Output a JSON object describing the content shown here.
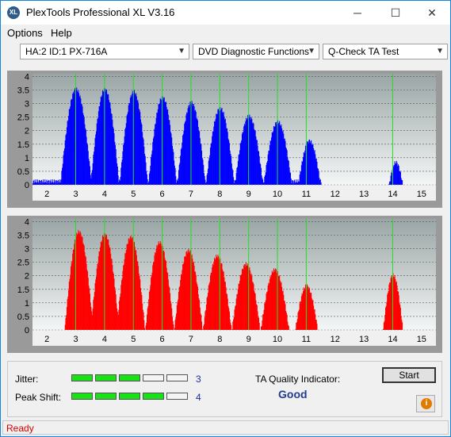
{
  "window": {
    "title": "PlexTools Professional XL V3.16",
    "icon_text": "XL"
  },
  "title_buttons": {
    "minimize": "─",
    "maximize": "☐",
    "close": "✕"
  },
  "menu": [
    "Options",
    "Help"
  ],
  "combos": {
    "drive": "HA:2 ID:1  PX-716A",
    "function": "DVD Diagnostic Functions",
    "test": "Q-Check TA Test"
  },
  "chart_data": [
    {
      "type": "bar",
      "name": "upper",
      "color": "#0000ff",
      "x_ticks": [
        "2",
        "3",
        "4",
        "5",
        "6",
        "7",
        "8",
        "9",
        "10",
        "11",
        "12",
        "13",
        "14",
        "15"
      ],
      "y_ticks": [
        "4",
        "3.5",
        "3",
        "2.5",
        "2",
        "1.5",
        "1",
        "0.5",
        "0"
      ],
      "xlim": [
        1.5,
        15.5
      ],
      "ylim": [
        0,
        4.1
      ],
      "grid": true,
      "marker_lines": [
        3,
        4,
        5,
        6,
        7,
        8,
        9,
        10,
        11,
        14
      ],
      "peaks": [
        {
          "center": 3.0,
          "height": 3.6,
          "width": 0.55
        },
        {
          "center": 4.0,
          "height": 3.6,
          "width": 0.5
        },
        {
          "center": 5.0,
          "height": 3.5,
          "width": 0.5
        },
        {
          "center": 6.0,
          "height": 3.3,
          "width": 0.5
        },
        {
          "center": 7.0,
          "height": 3.1,
          "width": 0.5
        },
        {
          "center": 8.0,
          "height": 2.9,
          "width": 0.5
        },
        {
          "center": 9.0,
          "height": 2.6,
          "width": 0.5
        },
        {
          "center": 10.0,
          "height": 2.4,
          "width": 0.5
        },
        {
          "center": 11.1,
          "height": 1.7,
          "width": 0.4
        },
        {
          "center": 14.1,
          "height": 0.9,
          "width": 0.25
        }
      ],
      "range": [
        1.5,
        11.5
      ],
      "floor": 0.2
    },
    {
      "type": "bar",
      "name": "lower",
      "color": "#ff0000",
      "x_ticks": [
        "2",
        "3",
        "4",
        "5",
        "6",
        "7",
        "8",
        "9",
        "10",
        "11",
        "12",
        "13",
        "14",
        "15"
      ],
      "y_ticks": [
        "4",
        "3.5",
        "3",
        "2.5",
        "2",
        "1.5",
        "1",
        "0.5",
        "0"
      ],
      "xlim": [
        1.5,
        15.5
      ],
      "ylim": [
        0,
        4.1
      ],
      "grid": true,
      "marker_lines": [
        3,
        4,
        5,
        6,
        7,
        8,
        9,
        10,
        11,
        14
      ],
      "peaks": [
        {
          "center": 3.1,
          "height": 3.7,
          "width": 0.5
        },
        {
          "center": 4.0,
          "height": 3.6,
          "width": 0.5
        },
        {
          "center": 4.9,
          "height": 3.5,
          "width": 0.5
        },
        {
          "center": 5.9,
          "height": 3.3,
          "width": 0.5
        },
        {
          "center": 6.9,
          "height": 3.0,
          "width": 0.5
        },
        {
          "center": 7.9,
          "height": 2.8,
          "width": 0.5
        },
        {
          "center": 8.9,
          "height": 2.5,
          "width": 0.5
        },
        {
          "center": 9.9,
          "height": 2.3,
          "width": 0.5
        },
        {
          "center": 11.0,
          "height": 1.7,
          "width": 0.4
        },
        {
          "center": 14.0,
          "height": 2.1,
          "width": 0.35
        }
      ],
      "range": [
        2.5,
        11.6
      ],
      "floor": 0.0
    }
  ],
  "quality": {
    "jitter_label": "Jitter:",
    "jitter_value": "3",
    "jitter_level": 3,
    "peak_label": "Peak Shift:",
    "peak_value": "4",
    "peak_level": 4,
    "indicator_label": "TA Quality Indicator:",
    "indicator_value": "Good",
    "segments_total": 5
  },
  "buttons": {
    "start": "Start",
    "info": "i"
  },
  "status": "Ready"
}
